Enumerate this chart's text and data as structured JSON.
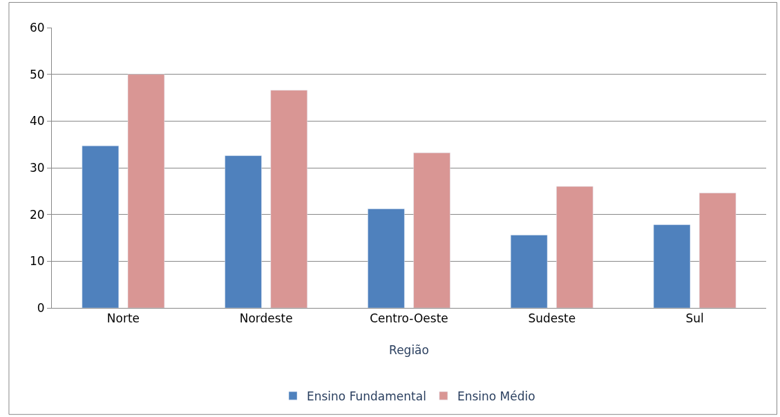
{
  "chart_data": {
    "type": "bar",
    "xlabel": "Região",
    "categories": [
      "Norte",
      "Nordeste",
      "Centro-Oeste",
      "Sudeste",
      "Sul"
    ],
    "series": [
      {
        "name": "Ensino Fundamental",
        "color": "#4f81bd",
        "values": [
          34.7,
          32.6,
          21.2,
          15.6,
          17.8
        ]
      },
      {
        "name": "Ensino Médio",
        "color": "#d99694",
        "values": [
          50.0,
          46.6,
          33.2,
          26.0,
          24.6
        ]
      }
    ],
    "ylim": [
      0,
      60
    ],
    "yticks": [
      0,
      10,
      20,
      30,
      40,
      50,
      60
    ],
    "grid": "y",
    "legend": "bottom"
  }
}
